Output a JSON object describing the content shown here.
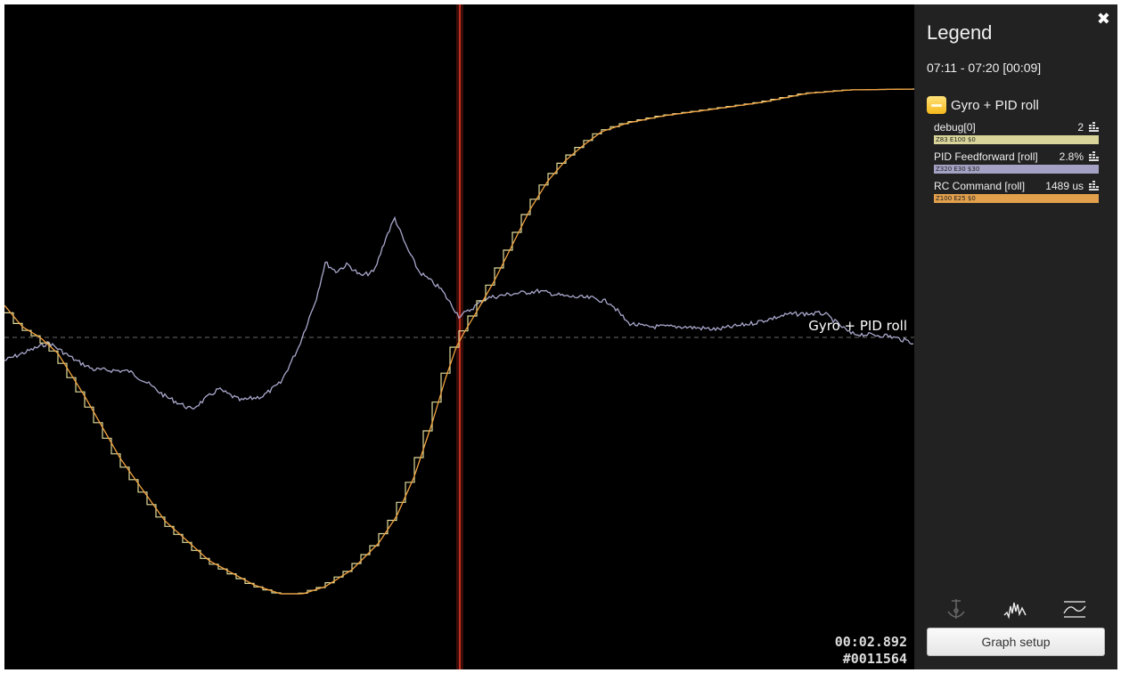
{
  "graph": {
    "group_label": "Gyro + PID roll",
    "time": "00:02.892",
    "frame": "#0011564",
    "colors": {
      "debug": "#e3dc9a",
      "feedforward": "#a9a8cd",
      "rc_command": "#f2a341",
      "cursor": "#b02a1c",
      "zero_line": "#666666",
      "background": "#000000"
    }
  },
  "legend": {
    "title": "Legend",
    "close_icon": "close-icon",
    "range": "07:11 - 07:20 [00:09]",
    "group": {
      "name": "Gyro + PID roll",
      "toggle_icon": "collapse-icon"
    },
    "fields": [
      {
        "name": "debug[0]",
        "value": "2",
        "scale": "Z83 E100 $0",
        "color": "#d9d59a"
      },
      {
        "name": "PID Feedforward [roll]",
        "value": "2.8%",
        "scale": "Z320 E30 $30",
        "color": "#a3a2c4"
      },
      {
        "name": "RC Command [roll]",
        "value": "1489 us",
        "scale": "Z100 E25 $0",
        "color": "#e2a04c"
      }
    ],
    "buttons": {
      "graph_setup": "Graph setup"
    }
  }
}
